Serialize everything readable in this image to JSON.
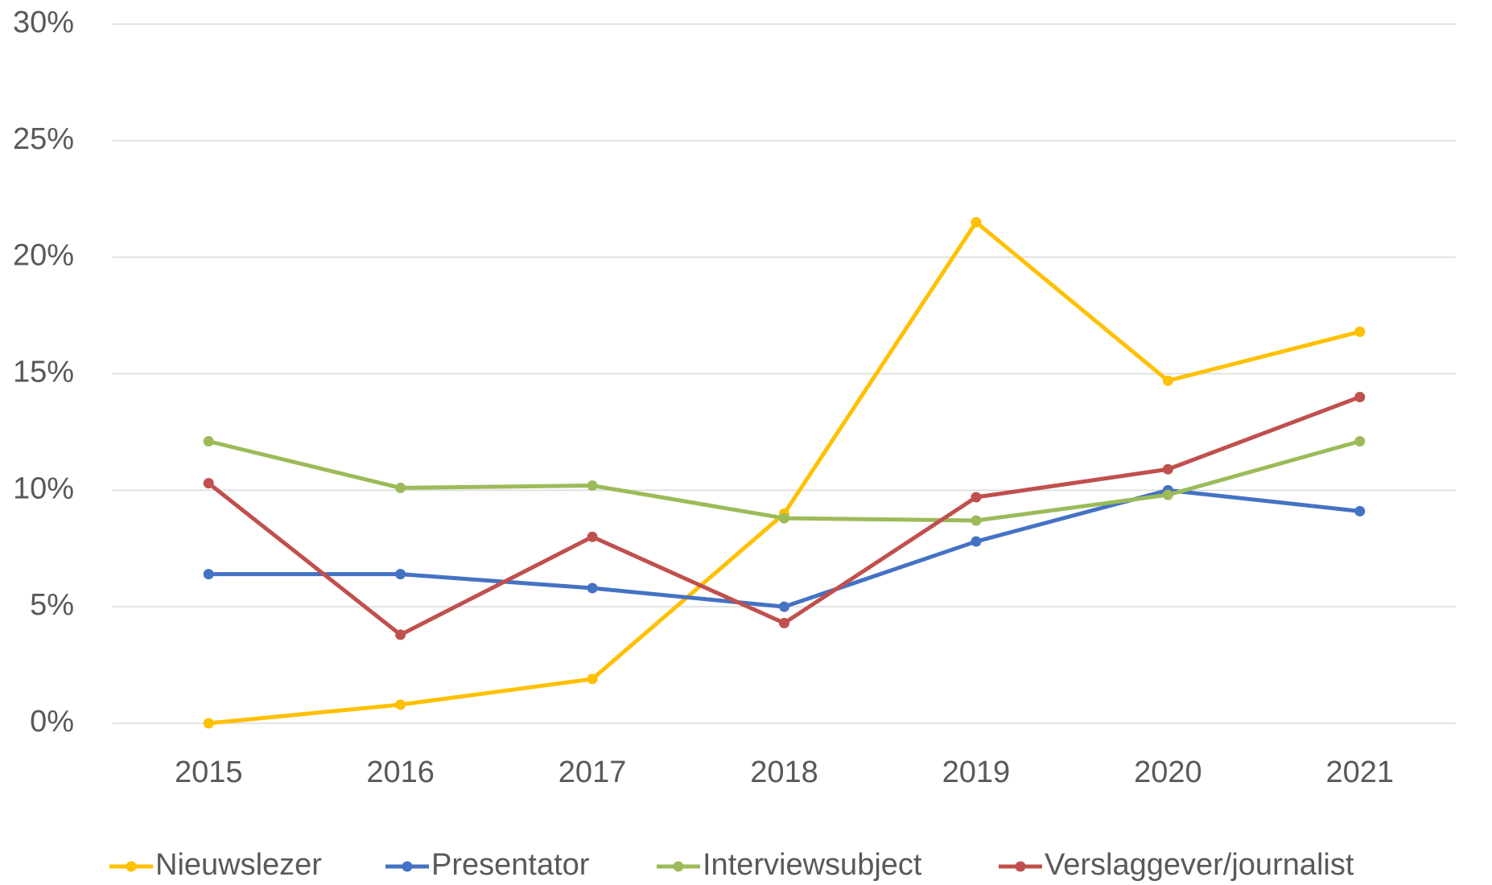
{
  "chart_data": {
    "type": "line",
    "categories": [
      "2015",
      "2016",
      "2017",
      "2018",
      "2019",
      "2020",
      "2021"
    ],
    "series": [
      {
        "name": "Nieuwslezer",
        "color": "#ffc000",
        "values": [
          0,
          0.8,
          1.9,
          9.0,
          21.5,
          14.7,
          16.8
        ]
      },
      {
        "name": "Presentator",
        "color": "#4472c4",
        "values": [
          6.4,
          6.4,
          5.8,
          5.0,
          7.8,
          10.0,
          9.1
        ]
      },
      {
        "name": "Interviewsubject",
        "color": "#9bbb59",
        "values": [
          12.1,
          10.1,
          10.2,
          8.8,
          8.7,
          9.8,
          12.1
        ]
      },
      {
        "name": "Verslaggever/journalist",
        "color": "#c0504d",
        "values": [
          10.3,
          3.8,
          8.0,
          4.3,
          9.7,
          10.9,
          14.0
        ]
      }
    ],
    "ylim": [
      0,
      30
    ],
    "yticks": [
      {
        "value": 0,
        "label": "0%"
      },
      {
        "value": 5,
        "label": "5%"
      },
      {
        "value": 10,
        "label": "10%"
      },
      {
        "value": 15,
        "label": "15%"
      },
      {
        "value": 20,
        "label": "20%"
      },
      {
        "value": 25,
        "label": "25%"
      },
      {
        "value": 30,
        "label": "30%"
      }
    ],
    "grid": true,
    "legend": "bottom"
  }
}
